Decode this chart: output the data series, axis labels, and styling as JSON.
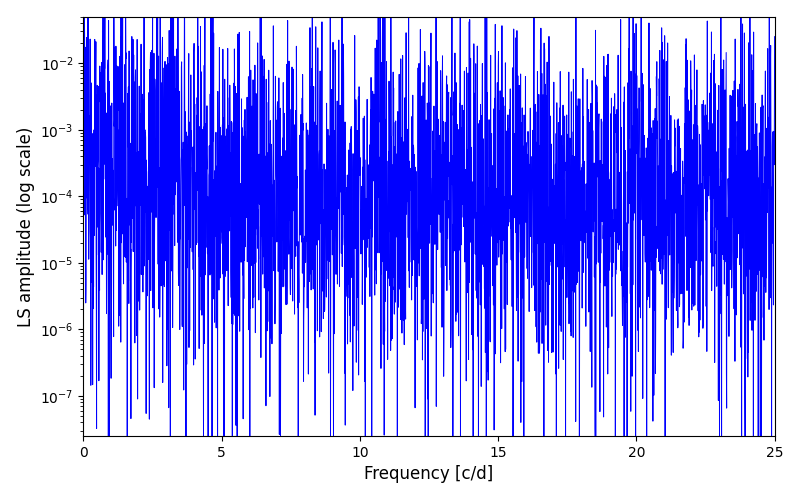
{
  "xlabel": "Frequency [c/d]",
  "ylabel": "LS amplitude (log scale)",
  "title": "",
  "line_color": "#0000ff",
  "line_width": 0.7,
  "xmin": 0,
  "xmax": 25,
  "ymin": 2.5e-08,
  "ymax": 0.05,
  "background_color": "#ffffff",
  "num_points": 3000,
  "seed": 12345
}
